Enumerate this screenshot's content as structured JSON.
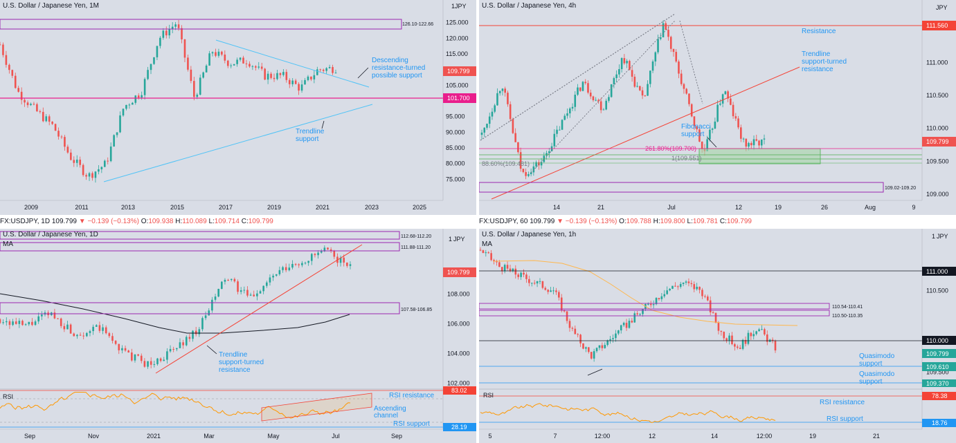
{
  "panels": {
    "monthly": {
      "title": "U.S. Dollar / Japanese Yen, 1M",
      "unit": "JPY",
      "unit_index": "1",
      "price_tag": "109.799",
      "level_tag": "101.700",
      "zone_label": "126.10-122.66",
      "annotations": [
        "Descending",
        "resistance-turned",
        "possible support",
        "Trendline",
        "support"
      ]
    },
    "h4": {
      "title": "U.S. Dollar / Japanese Yen, 4h",
      "unit": "JPY",
      "price_tag": "109.799",
      "level_tag": "111.560",
      "zone_label": "109.02-109.20",
      "fib_label_1": "261.80%(109.700)",
      "fib_label_2": "1(109.551)",
      "fib_label_3": "88.60%(109.481)",
      "annotations": [
        "Resistance",
        "Trendline",
        "support-turned",
        "resistance",
        "Fibonacci",
        "support"
      ]
    },
    "daily": {
      "ticker": {
        "symbol": "FX:USDJPY, 1D",
        "last": "109.799",
        "change": "▼ −0.139 (−0.13%)",
        "o": "O:",
        "o_val": "109.938",
        "h": "H:",
        "h_val": "110.089",
        "l": "L:",
        "l_val": "109.714",
        "c": "C:",
        "c_val": "109.799"
      },
      "title": "U.S. Dollar / Japanese Yen, 1D",
      "unit": "JPY",
      "unit_index": "1",
      "ma_label": "MA",
      "rsi_label": "RSI",
      "price_tag": "109.799",
      "zone_labels": [
        "112.68-112.20",
        "111.88-111.20",
        "107.58-106.85"
      ],
      "rsi_tags": [
        "83.02",
        "28.19"
      ],
      "annotations": [
        "Trendline",
        "support-turned",
        "resistance",
        "RSI resistance",
        "Ascending",
        "channel",
        "RSI support"
      ]
    },
    "h1": {
      "ticker": {
        "symbol": "FX:USDJPY, 60",
        "last": "109.799",
        "change": "▼ −0.139 (−0.13%)",
        "o": "O:",
        "o_val": "109.788",
        "h": "H:",
        "h_val": "109.800",
        "l": "L:",
        "l_val": "109.781",
        "c": "C:",
        "c_val": "109.799"
      },
      "title": "U.S. Dollar / Japanese Yen, 1h",
      "unit": "JPY",
      "unit_index": "1",
      "ma_label": "MA",
      "rsi_label": "RSI",
      "price_tag": "109.799",
      "level_tags": [
        "111.000",
        "110.000",
        "109.610",
        "109.370"
      ],
      "zone_labels": [
        "110.54-110.41",
        "110.50-110.35"
      ],
      "rsi_tags": [
        "78.38",
        "18.76"
      ],
      "annotations": [
        "Quasimodo",
        "support",
        "Quasimodo",
        "support",
        "RSI resistance",
        "RSI support"
      ]
    }
  },
  "chart_data": [
    {
      "type": "line",
      "title": "U.S. Dollar / Japanese Yen, 1M",
      "ylim": [
        70,
        130
      ],
      "y_ticks": [
        75,
        80,
        85,
        90,
        95,
        100,
        105,
        110,
        115,
        120,
        125
      ],
      "y_tick_labels": [
        "75.000",
        "80.000",
        "85.000",
        "90.000",
        "95.000",
        "100.000",
        "105.000",
        "110.000",
        "115.000",
        "120.000",
        "125.000"
      ],
      "x_tick_labels": [
        "2009",
        "2011",
        "2013",
        "2015",
        "2017",
        "2019",
        "2021",
        "2023",
        "2025"
      ],
      "x": [
        2007.5,
        2008.5,
        2009.0,
        2010.0,
        2011.0,
        2011.8,
        2012.5,
        2013.3,
        2014.0,
        2014.9,
        2015.5,
        2016.3,
        2016.8,
        2017.5,
        2018.5,
        2019.5,
        2020.2,
        2020.8,
        2021.2,
        2021.5
      ],
      "series": [
        {
          "values": [
            118,
            103,
            97,
            92,
            82,
            76,
            80,
            98,
            103,
            120,
            125,
            101,
            116,
            112,
            113,
            108,
            108,
            104,
            110,
            110.5
          ]
        }
      ],
      "last": 109.799
    },
    {
      "type": "line",
      "title": "U.S. Dollar / Japanese Yen, 4h",
      "ylim": [
        108.8,
        111.8
      ],
      "y_ticks": [
        109,
        109.5,
        110,
        110.5,
        111,
        111.5
      ],
      "y_tick_labels": [
        "109.000",
        "109.500",
        "110.000",
        "110.500",
        "111.000",
        ""
      ],
      "x_tick_labels": [
        "14",
        "21",
        "Jul",
        "12",
        "19",
        "26",
        "Aug",
        "9"
      ],
      "series": [
        {
          "values": [
            109.9,
            110.7,
            109.3,
            109.5,
            110.1,
            110.7,
            110.3,
            111.1,
            110.4,
            111.6,
            110.6,
            109.6,
            110.6,
            109.75,
            109.8
          ]
        }
      ],
      "last": 109.799
    },
    {
      "type": "line",
      "title": "U.S. Dollar / Japanese Yen, 1D",
      "ylim": [
        101.6,
        112.8
      ],
      "y_ticks": [
        102,
        104,
        106,
        108,
        110
      ],
      "y_tick_labels": [
        "102.000",
        "104.000",
        "106.000",
        "108.000",
        ""
      ],
      "x_tick_labels": [
        "Sep",
        "Nov",
        "2021",
        "Mar",
        "May",
        "Jul",
        "Sep"
      ],
      "series": [
        {
          "values": [
            106.3,
            105.8,
            106.7,
            105.3,
            105.7,
            104.0,
            103.2,
            104.3,
            105.8,
            109.1,
            107.7,
            109.3,
            110.1,
            110.9,
            109.8
          ]
        }
      ],
      "last": 109.799
    },
    {
      "type": "line",
      "title": "U.S. Dollar / Japanese Yen, 1h",
      "ylim": [
        109.25,
        111.25
      ],
      "y_ticks": [
        109.5,
        110.0,
        110.5,
        111.0
      ],
      "y_tick_labels": [
        "109.500",
        "",
        "110.500",
        ""
      ],
      "x_tick_labels": [
        "5",
        "7",
        "12:00",
        "12",
        "14",
        "12:00",
        "19",
        "21"
      ],
      "series": [
        {
          "values": [
            111.0,
            110.8,
            110.7,
            110.6,
            110.5,
            110.0,
            109.7,
            109.9,
            110.1,
            110.3,
            110.5,
            110.6,
            110.5,
            110.0,
            109.8,
            110.05,
            109.8
          ]
        }
      ],
      "last": 109.799
    }
  ],
  "colors": {
    "bull": "#26a69a",
    "bear": "#ef5350",
    "zone": "#9c27b0",
    "trend_blue": "#4fc3f7",
    "trend_red": "#f44336",
    "level": "#e91e8c",
    "rsi": "#ff9800",
    "ma": "#ffb74d"
  }
}
